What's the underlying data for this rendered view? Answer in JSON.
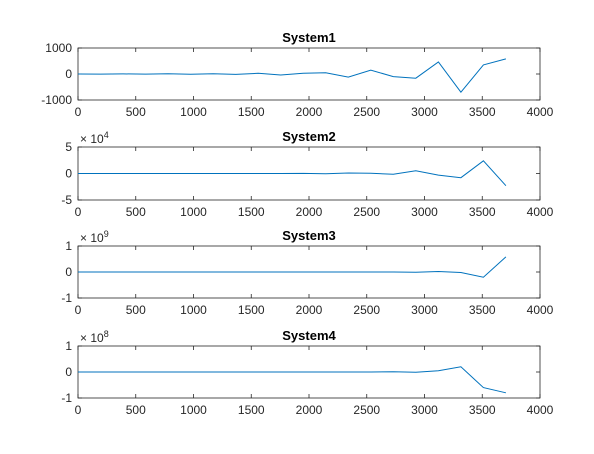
{
  "colors": {
    "line": "#0072BD",
    "axes": "#262626",
    "background": "#ffffff"
  },
  "chart_data": [
    {
      "type": "line",
      "title": "System1",
      "xlabel": "",
      "ylabel": "",
      "xlim": [
        0,
        4000
      ],
      "ylim": [
        -1000,
        1000
      ],
      "x_ticks": [
        "0",
        "500",
        "1000",
        "1500",
        "2000",
        "2500",
        "3000",
        "3500",
        "4000"
      ],
      "y_ticks": [
        "-1000",
        "0",
        "1000"
      ],
      "y_tick_values": [
        -1000,
        0,
        1000
      ],
      "exponent": null,
      "grid": false,
      "series": [
        {
          "x": [
            0,
            195,
            390,
            585,
            780,
            975,
            1170,
            1365,
            1560,
            1755,
            1950,
            2145,
            2340,
            2535,
            2730,
            2925,
            3120,
            3315,
            3510,
            3705
          ],
          "y": [
            0,
            -2,
            2,
            -5,
            8,
            -10,
            12,
            -15,
            25,
            -40,
            30,
            45,
            -120,
            150,
            -100,
            -160,
            460,
            -700,
            350,
            580
          ]
        }
      ]
    },
    {
      "type": "line",
      "title": "System2",
      "xlabel": "",
      "ylabel": "",
      "xlim": [
        0,
        4000
      ],
      "ylim": [
        -5,
        5
      ],
      "x_ticks": [
        "0",
        "500",
        "1000",
        "1500",
        "2000",
        "2500",
        "3000",
        "3500",
        "4000"
      ],
      "y_ticks": [
        "-5",
        "0",
        "5"
      ],
      "y_tick_values": [
        -5,
        0,
        5
      ],
      "exponent": {
        "base": "× 10",
        "power": "4"
      },
      "grid": false,
      "series": [
        {
          "x": [
            0,
            195,
            390,
            585,
            780,
            975,
            1170,
            1365,
            1560,
            1755,
            1950,
            2145,
            2340,
            2535,
            2730,
            2925,
            3120,
            3315,
            3510,
            3705
          ],
          "y": [
            0,
            0,
            0,
            0,
            0,
            0,
            0,
            0,
            0,
            0,
            0.02,
            -0.05,
            0.1,
            0.05,
            -0.15,
            0.5,
            -0.3,
            -0.8,
            2.4,
            -2.3
          ]
        }
      ]
    },
    {
      "type": "line",
      "title": "System3",
      "xlabel": "",
      "ylabel": "",
      "xlim": [
        0,
        4000
      ],
      "ylim": [
        -1,
        1
      ],
      "x_ticks": [
        "0",
        "500",
        "1000",
        "1500",
        "2000",
        "2500",
        "3000",
        "3500",
        "4000"
      ],
      "y_ticks": [
        "-1",
        "0",
        "1"
      ],
      "y_tick_values": [
        -1,
        0,
        1
      ],
      "exponent": {
        "base": "× 10",
        "power": "9"
      },
      "grid": false,
      "series": [
        {
          "x": [
            0,
            195,
            390,
            585,
            780,
            975,
            1170,
            1365,
            1560,
            1755,
            1950,
            2145,
            2340,
            2535,
            2730,
            2925,
            3120,
            3315,
            3510,
            3705
          ],
          "y": [
            0,
            0,
            0,
            0,
            0,
            0,
            0,
            0,
            0,
            0,
            0,
            0,
            0,
            0,
            0,
            -0.01,
            0.02,
            -0.02,
            -0.2,
            0.58
          ]
        }
      ]
    },
    {
      "type": "line",
      "title": "System4",
      "xlabel": "",
      "ylabel": "",
      "xlim": [
        0,
        4000
      ],
      "ylim": [
        -1,
        1
      ],
      "x_ticks": [
        "0",
        "500",
        "1000",
        "1500",
        "2000",
        "2500",
        "3000",
        "3500",
        "4000"
      ],
      "y_ticks": [
        "-1",
        "0",
        "1"
      ],
      "y_tick_values": [
        -1,
        0,
        1
      ],
      "exponent": {
        "base": "× 10",
        "power": "8"
      },
      "grid": false,
      "series": [
        {
          "x": [
            0,
            195,
            390,
            585,
            780,
            975,
            1170,
            1365,
            1560,
            1755,
            1950,
            2145,
            2340,
            2535,
            2730,
            2925,
            3120,
            3315,
            3510,
            3705
          ],
          "y": [
            0,
            0,
            0,
            0,
            0,
            0,
            0,
            0,
            0,
            0,
            0,
            0,
            0,
            0,
            0.01,
            -0.01,
            0.05,
            0.2,
            -0.6,
            -0.8
          ]
        }
      ]
    }
  ]
}
